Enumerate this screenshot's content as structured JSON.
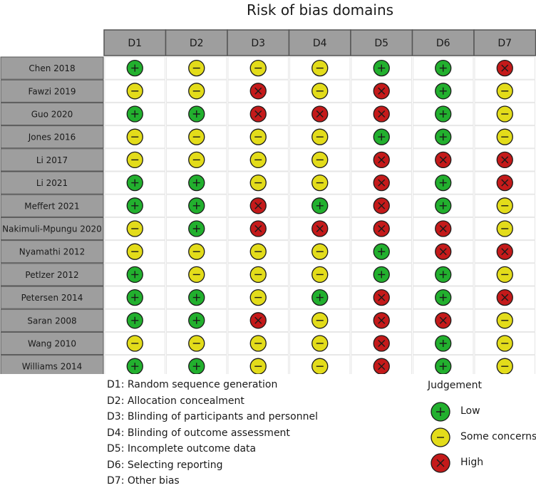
{
  "chart_data": {
    "type": "table",
    "title": "Risk of bias domains",
    "domains": [
      "D1",
      "D2",
      "D3",
      "D4",
      "D5",
      "D6",
      "D7"
    ],
    "studies": [
      {
        "name": "Chen 2018",
        "judgements": [
          "low",
          "some",
          "some",
          "some",
          "low",
          "low",
          "high"
        ]
      },
      {
        "name": "Fawzi 2019",
        "judgements": [
          "some",
          "some",
          "high",
          "some",
          "high",
          "low",
          "some"
        ]
      },
      {
        "name": "Guo 2020",
        "judgements": [
          "low",
          "low",
          "high",
          "high",
          "high",
          "low",
          "some"
        ]
      },
      {
        "name": "Jones 2016",
        "judgements": [
          "some",
          "some",
          "some",
          "some",
          "low",
          "low",
          "some"
        ]
      },
      {
        "name": "Li 2017",
        "judgements": [
          "some",
          "some",
          "some",
          "some",
          "high",
          "high",
          "high"
        ]
      },
      {
        "name": "Li 2021",
        "judgements": [
          "low",
          "low",
          "some",
          "some",
          "high",
          "low",
          "high"
        ]
      },
      {
        "name": "Meffert 2021",
        "judgements": [
          "low",
          "low",
          "high",
          "low",
          "high",
          "low",
          "some"
        ]
      },
      {
        "name": "Nakimuli-Mpungu 2020",
        "judgements": [
          "some",
          "low",
          "high",
          "high",
          "high",
          "high",
          "some"
        ]
      },
      {
        "name": "Nyamathi 2012",
        "judgements": [
          "some",
          "some",
          "some",
          "some",
          "low",
          "high",
          "high"
        ]
      },
      {
        "name": "Petlzer 2012",
        "judgements": [
          "low",
          "some",
          "some",
          "some",
          "low",
          "low",
          "some"
        ]
      },
      {
        "name": "Petersen 2014",
        "judgements": [
          "low",
          "low",
          "some",
          "low",
          "high",
          "low",
          "high"
        ]
      },
      {
        "name": "Saran 2008",
        "judgements": [
          "low",
          "low",
          "high",
          "some",
          "high",
          "high",
          "some"
        ]
      },
      {
        "name": "Wang 2010",
        "judgements": [
          "some",
          "some",
          "some",
          "some",
          "high",
          "low",
          "some"
        ]
      },
      {
        "name": "Williams 2014",
        "judgements": [
          "low",
          "low",
          "some",
          "some",
          "high",
          "low",
          "some"
        ]
      }
    ],
    "domain_definitions": [
      "D1: Random sequence generation",
      "D2: Allocation concealment",
      "D3: Blinding of participants and personnel",
      "D4: Blinding of outcome assessment",
      "D5: Incomplete outcome data",
      "D6: Selecting reporting",
      "D7: Other bias"
    ],
    "legend": {
      "title": "Judgement",
      "entries": [
        {
          "key": "low",
          "label": "Low",
          "symbol": "+"
        },
        {
          "key": "some",
          "label": "Some concerns",
          "symbol": "–"
        },
        {
          "key": "high",
          "label": "High",
          "symbol": "X"
        }
      ]
    },
    "colors": {
      "low": "#22b02e",
      "some": "#e3dc1a",
      "high": "#c41a1a",
      "header_bg": "#9e9e9e",
      "border": "#555555"
    }
  }
}
